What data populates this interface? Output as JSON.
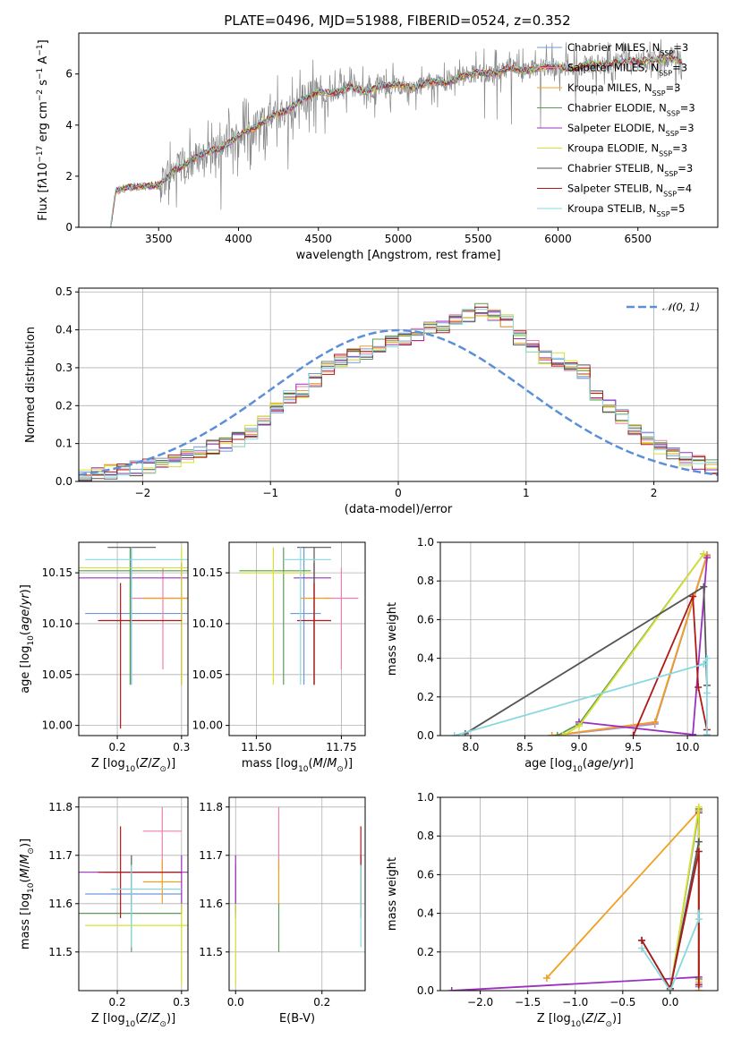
{
  "title": "PLATE=0496, MJD=51988, FIBERID=0524, z=0.352",
  "colors": {
    "Chabrier MILES": "#6e9bd8",
    "Salpeter MILES": "#f07fb0",
    "Kroupa MILES": "#f0a020",
    "Chabrier ELODIE": "#5c9a5c",
    "Salpeter ELODIE": "#9b30c0",
    "Kroupa ELODIE": "#d8e030",
    "Chabrier STELIB": "#555555",
    "Salpeter STELIB": "#b01818",
    "Kroupa STELIB": "#88d8e0",
    "data": "#888888",
    "normal": "#5b8fd9",
    "grid": "#b0b0b0"
  },
  "chart_data": [
    {
      "type": "line",
      "id": "spectrum",
      "xlabel": "wavelength [Angstrom, rest frame]",
      "ylabel_html": "Flux [f<tspan font-style='italic'>λ</tspan>10<tspan baseline-shift='super' font-size='9'>−17</tspan> erg cm<tspan baseline-shift='super' font-size='9'>−2</tspan> s<tspan baseline-shift='super' font-size='9'>−1</tspan> A<tspan baseline-shift='super' font-size='9'>−1</tspan>]",
      "xlim": [
        3000,
        7000
      ],
      "ylim": [
        0,
        7.6
      ],
      "xticks": [
        3500,
        4000,
        4500,
        5000,
        5500,
        6000,
        6500
      ],
      "yticks": [
        0,
        2,
        4,
        6
      ],
      "grid": false,
      "legend_position": "upper right",
      "continuum": {
        "x": [
          3200,
          3230,
          3300,
          3400,
          3500,
          3600,
          3700,
          3800,
          3900,
          4000,
          4100,
          4200,
          4300,
          4400,
          4500,
          4600,
          4700,
          4800,
          4900,
          5000,
          5100,
          5200,
          5300,
          5400,
          5500,
          5600,
          5700,
          5800,
          5900,
          6000,
          6100,
          6200,
          6300,
          6400,
          6500,
          6600,
          6700,
          6780
        ],
        "y": [
          0,
          1.4,
          1.55,
          1.6,
          1.65,
          2.2,
          2.6,
          2.95,
          3.1,
          3.6,
          3.9,
          4.3,
          4.55,
          5.0,
          5.3,
          5.25,
          5.5,
          5.3,
          5.55,
          5.6,
          5.45,
          5.7,
          5.65,
          5.9,
          6.05,
          6.0,
          6.25,
          6.1,
          6.3,
          6.3,
          6.2,
          6.4,
          6.35,
          6.5,
          6.5,
          6.55,
          6.6,
          6.5
        ]
      },
      "series": [
        {
          "name": "Chabrier MILES, N<tspan baseline-shift='sub' font-size='8'>SSP</tspan>=3"
        },
        {
          "name": "Salpeter MILES, N<tspan baseline-shift='sub' font-size='8'>SSP</tspan>=3"
        },
        {
          "name": "Kroupa MILES, N<tspan baseline-shift='sub' font-size='8'>SSP</tspan>=3"
        },
        {
          "name": "Chabrier ELODIE, N<tspan baseline-shift='sub' font-size='8'>SSP</tspan>=3"
        },
        {
          "name": "Salpeter ELODIE, N<tspan baseline-shift='sub' font-size='8'>SSP</tspan>=3"
        },
        {
          "name": "Kroupa ELODIE, N<tspan baseline-shift='sub' font-size='8'>SSP</tspan>=3"
        },
        {
          "name": "Chabrier STELIB, N<tspan baseline-shift='sub' font-size='8'>SSP</tspan>=3"
        },
        {
          "name": "Salpeter STELIB, N<tspan baseline-shift='sub' font-size='8'>SSP</tspan>=4"
        },
        {
          "name": "Kroupa STELIB, N<tspan baseline-shift='sub' font-size='8'>SSP</tspan>=5"
        }
      ]
    },
    {
      "type": "line",
      "id": "residuals",
      "xlabel": "(data-model)/error",
      "ylabel": "Normed distribution",
      "xlim": [
        -2.5,
        2.5
      ],
      "ylim": [
        0,
        0.51
      ],
      "xticks": [
        -2,
        -1,
        0,
        1,
        2
      ],
      "yticks": [
        0,
        0.1,
        0.2,
        0.3,
        0.4,
        0.5
      ],
      "grid": true,
      "legend_position": "upper right",
      "normal_label": "𝒩(0, 1)",
      "bin_width": 0.1,
      "bin_start": -2.5,
      "base_hist": [
        0.015,
        0.02,
        0.025,
        0.03,
        0.035,
        0.04,
        0.045,
        0.05,
        0.065,
        0.08,
        0.09,
        0.1,
        0.11,
        0.13,
        0.16,
        0.2,
        0.22,
        0.24,
        0.27,
        0.3,
        0.32,
        0.33,
        0.34,
        0.36,
        0.37,
        0.38,
        0.39,
        0.4,
        0.41,
        0.42,
        0.44,
        0.45,
        0.44,
        0.42,
        0.38,
        0.36,
        0.33,
        0.32,
        0.31,
        0.29,
        0.22,
        0.2,
        0.17,
        0.13,
        0.11,
        0.09,
        0.07,
        0.06,
        0.05,
        0.04
      ]
    },
    {
      "type": "scatter",
      "id": "age-vs-Z",
      "xlabel_html": "Z [log<tspan baseline-shift='sub' font-size='9'>10</tspan>(<tspan font-style='italic'>Z</tspan>/<tspan font-style='italic'>Z</tspan><tspan baseline-shift='sub' font-size='9'>⊙</tspan>)]",
      "ylabel_html": "age  [log<tspan baseline-shift='sub' font-size='9'>10</tspan>(<tspan font-style='italic'>age</tspan>/<tspan font-style='italic'>yr</tspan>)]",
      "xlim": [
        0.14,
        0.31
      ],
      "ylim": [
        9.99,
        10.18
      ],
      "xticks": [
        0.2,
        0.3
      ],
      "yticks": [
        10.0,
        10.05,
        10.1,
        10.15
      ],
      "grid": true,
      "points": [
        {
          "x": 0.222,
          "y": 10.11,
          "xerr": [
            0.15,
            0.31
          ],
          "yerr": [
            10.04,
            10.175
          ]
        },
        {
          "x": 0.271,
          "y": 10.125,
          "xerr": [
            0.22,
            0.31
          ],
          "yerr": [
            10.055,
            10.155
          ]
        },
        {
          "x": 0.3,
          "y": 10.125,
          "xerr": [
            0.24,
            0.31
          ],
          "yerr": [
            10.04,
            10.16
          ]
        },
        {
          "x": 0.22,
          "y": 10.152,
          "xerr": [
            0.14,
            0.31
          ],
          "yerr": [
            10.04,
            10.175
          ]
        },
        {
          "x": 0.3,
          "y": 10.145,
          "xerr": [
            0.14,
            0.31
          ],
          "yerr": [
            10.04,
            10.16
          ]
        },
        {
          "x": 0.3,
          "y": 10.155,
          "xerr": [
            0.14,
            0.31
          ],
          "yerr": [
            10.04,
            10.175
          ]
        },
        {
          "x": 0.222,
          "y": 10.175,
          "xerr": [
            0.185,
            0.26
          ],
          "yerr": [
            10.04,
            10.175
          ]
        },
        {
          "x": 0.205,
          "y": 10.103,
          "xerr": [
            0.17,
            0.3
          ],
          "yerr": [
            9.997,
            10.14
          ]
        },
        {
          "x": 0.222,
          "y": 10.163,
          "xerr": [
            0.15,
            0.31
          ],
          "yerr": [
            10.04,
            10.175
          ]
        }
      ]
    },
    {
      "type": "scatter",
      "id": "age-vs-mass",
      "xlabel_html": "mass [log<tspan baseline-shift='sub' font-size='9'>10</tspan>(<tspan font-style='italic'>M</tspan>/<tspan font-style='italic'>M</tspan><tspan baseline-shift='sub' font-size='9'>⊙</tspan>)]",
      "ylabel_html": "",
      "xlim": [
        11.42,
        11.82
      ],
      "ylim": [
        9.99,
        10.18
      ],
      "xticks": [
        11.5,
        11.75
      ],
      "yticks": [
        10.0,
        10.05,
        10.1,
        10.15
      ],
      "grid": true,
      "points": [
        {
          "x": 11.64,
          "y": 10.11,
          "xerr": [
            11.6,
            11.69
          ],
          "yerr": [
            10.04,
            10.175
          ]
        },
        {
          "x": 11.75,
          "y": 10.125,
          "xerr": [
            11.7,
            11.8
          ],
          "yerr": [
            10.055,
            10.155
          ]
        },
        {
          "x": 11.67,
          "y": 10.125,
          "xerr": [
            11.63,
            11.72
          ],
          "yerr": [
            10.04,
            10.16
          ]
        },
        {
          "x": 11.58,
          "y": 10.152,
          "xerr": [
            11.45,
            11.66
          ],
          "yerr": [
            10.04,
            10.175
          ]
        },
        {
          "x": 11.67,
          "y": 10.145,
          "xerr": [
            11.61,
            11.72
          ],
          "yerr": [
            10.04,
            10.16
          ]
        },
        {
          "x": 11.55,
          "y": 10.15,
          "xerr": [
            11.45,
            11.66
          ],
          "yerr": [
            10.04,
            10.175
          ]
        },
        {
          "x": 11.67,
          "y": 10.175,
          "xerr": [
            11.62,
            11.72
          ],
          "yerr": [
            10.04,
            10.175
          ]
        },
        {
          "x": 11.67,
          "y": 10.103,
          "xerr": [
            11.62,
            11.72
          ],
          "yerr": [
            10.04,
            10.14
          ]
        },
        {
          "x": 11.63,
          "y": 10.163,
          "xerr": [
            11.58,
            11.72
          ],
          "yerr": [
            10.04,
            10.175
          ]
        }
      ]
    },
    {
      "type": "line",
      "id": "mass-weight-vs-age",
      "xlabel_html": "age  [log<tspan baseline-shift='sub' font-size='9'>10</tspan>(<tspan font-style='italic'>age</tspan>/<tspan font-style='italic'>yr</tspan>)]",
      "ylabel": "mass weight",
      "xlim": [
        7.72,
        10.28
      ],
      "ylim": [
        0,
        1
      ],
      "xticks": [
        8.0,
        8.5,
        9.0,
        9.5,
        10.0
      ],
      "yticks": [
        0,
        0.2,
        0.4,
        0.6,
        0.8,
        1.0
      ],
      "grid": true,
      "series": [
        {
          "x": [
            8.75,
            9.7,
            10.18
          ],
          "y": [
            0.0,
            0.06,
            0.93
          ]
        },
        {
          "x": [
            8.75,
            9.7,
            10.18
          ],
          "y": [
            0.0,
            0.065,
            0.935
          ]
        },
        {
          "x": [
            8.75,
            9.7,
            10.18
          ],
          "y": [
            0.0,
            0.07,
            0.93
          ]
        },
        {
          "x": [
            8.8,
            9.0,
            10.15
          ],
          "y": [
            0.0,
            0.06,
            0.94
          ]
        },
        {
          "x": [
            9.0,
            10.05,
            10.18
          ],
          "y": [
            0.07,
            0.005,
            0.92
          ]
        },
        {
          "x": [
            8.85,
            9.0,
            10.15
          ],
          "y": [
            0.0,
            0.05,
            0.94
          ]
        },
        {
          "x": [
            7.95,
            10.15,
            10.18
          ],
          "y": [
            0.01,
            0.77,
            0.26
          ]
        },
        {
          "x": [
            9.5,
            10.05,
            10.1,
            10.18
          ],
          "y": [
            0.0,
            0.72,
            0.25,
            0.03
          ]
        },
        {
          "x": [
            7.85,
            10.15,
            10.18,
            10.18,
            10.18
          ],
          "y": [
            0.0,
            0.37,
            0.4,
            0.22,
            0.005
          ]
        }
      ]
    },
    {
      "type": "scatter",
      "id": "mass-vs-Z",
      "xlabel_html": "Z [log<tspan baseline-shift='sub' font-size='9'>10</tspan>(<tspan font-style='italic'>Z</tspan>/<tspan font-style='italic'>Z</tspan><tspan baseline-shift='sub' font-size='9'>⊙</tspan>)]",
      "ylabel_html": "mass [log<tspan baseline-shift='sub' font-size='9'>10</tspan>(<tspan font-style='italic'>M</tspan>/<tspan font-style='italic'>M</tspan><tspan baseline-shift='sub' font-size='9'>⊙</tspan>)]",
      "xlim": [
        0.14,
        0.31
      ],
      "ylim": [
        11.42,
        11.82
      ],
      "xticks": [
        0.2,
        0.3
      ],
      "yticks": [
        11.5,
        11.6,
        11.7,
        11.8
      ],
      "grid": true,
      "points": [
        {
          "x": 0.222,
          "y": 11.62,
          "xerr": [
            0.15,
            0.3
          ],
          "yerr": [
            11.57,
            11.68
          ]
        },
        {
          "x": 0.27,
          "y": 11.75,
          "xerr": [
            0.24,
            0.3
          ],
          "yerr": [
            11.67,
            11.8
          ]
        },
        {
          "x": 0.27,
          "y": 11.645,
          "xerr": [
            0.24,
            0.3
          ],
          "yerr": [
            11.6,
            11.69
          ]
        },
        {
          "x": 0.222,
          "y": 11.58,
          "xerr": [
            0.14,
            0.3
          ],
          "yerr": [
            11.5,
            11.6
          ]
        },
        {
          "x": 0.3,
          "y": 11.665,
          "xerr": [
            0.14,
            0.31
          ],
          "yerr": [
            11.58,
            11.7
          ]
        },
        {
          "x": 0.3,
          "y": 11.555,
          "xerr": [
            0.15,
            0.31
          ],
          "yerr": [
            11.43,
            11.6
          ]
        },
        {
          "x": 0.222,
          "y": 11.665,
          "xerr": [
            0.18,
            0.3
          ],
          "yerr": [
            11.6,
            11.7
          ]
        },
        {
          "x": 0.205,
          "y": 11.665,
          "xerr": [
            0.17,
            0.3
          ],
          "yerr": [
            11.57,
            11.76
          ]
        },
        {
          "x": 0.222,
          "y": 11.63,
          "xerr": [
            0.19,
            0.3
          ],
          "yerr": [
            11.51,
            11.68
          ]
        }
      ]
    },
    {
      "type": "scatter",
      "id": "mass-vs-EBV",
      "xlabel": "E(B-V)",
      "ylabel_html": "",
      "xlim": [
        -0.015,
        0.3
      ],
      "ylim": [
        11.42,
        11.82
      ],
      "xticks": [
        0.0,
        0.2
      ],
      "yticks": [
        11.5,
        11.6,
        11.7,
        11.8
      ],
      "grid": true,
      "points": [
        {
          "x": 0.0,
          "y": 11.62,
          "yerr": [
            11.57,
            11.68
          ]
        },
        {
          "x": 0.1,
          "y": 11.75,
          "yerr": [
            11.67,
            11.8
          ]
        },
        {
          "x": 0.1,
          "y": 11.645,
          "yerr": [
            11.6,
            11.69
          ]
        },
        {
          "x": 0.1,
          "y": 11.58,
          "yerr": [
            11.5,
            11.6
          ]
        },
        {
          "x": 0.0,
          "y": 11.665,
          "yerr": [
            11.58,
            11.7
          ]
        },
        {
          "x": 0.0,
          "y": 11.555,
          "yerr": [
            11.43,
            11.6
          ]
        },
        {
          "x": 0.29,
          "y": 11.665,
          "yerr": [
            11.6,
            11.7
          ]
        },
        {
          "x": 0.29,
          "y": 11.665,
          "yerr": [
            11.57,
            11.76
          ]
        },
        {
          "x": 0.29,
          "y": 11.63,
          "yerr": [
            11.51,
            11.68
          ]
        }
      ]
    },
    {
      "type": "line",
      "id": "mass-weight-vs-Z",
      "xlabel_html": "Z [log<tspan baseline-shift='sub' font-size='9'>10</tspan>(<tspan font-style='italic'>Z</tspan>/<tspan font-style='italic'>Z</tspan><tspan baseline-shift='sub' font-size='9'>⊙</tspan>)]",
      "ylabel": "mass weight",
      "xlim": [
        -2.42,
        0.5
      ],
      "ylim": [
        0,
        1
      ],
      "xticks": [
        -2.0,
        -1.5,
        -1.0,
        -0.5,
        0.0
      ],
      "yticks": [
        0,
        0.2,
        0.4,
        0.6,
        0.8,
        1.0
      ],
      "grid": true,
      "series": [
        {
          "x": [
            0.0,
            0.3,
            0.3
          ],
          "y": [
            0.0,
            0.93,
            0.02
          ]
        },
        {
          "x": [
            0.0,
            0.3,
            0.3
          ],
          "y": [
            0.0,
            0.94,
            0.04
          ]
        },
        {
          "x": [
            -1.3,
            0.3,
            0.3
          ],
          "y": [
            0.065,
            0.93,
            0.0
          ]
        },
        {
          "x": [
            0.0,
            0.3,
            0.3
          ],
          "y": [
            0.0,
            0.94,
            0.06
          ]
        },
        {
          "x": [
            -2.3,
            0.3,
            0.3
          ],
          "y": [
            0.0,
            0.07,
            0.92
          ]
        },
        {
          "x": [
            0.0,
            0.3,
            0.3
          ],
          "y": [
            0.0,
            0.95,
            0.05
          ]
        },
        {
          "x": [
            -0.3,
            0.0,
            0.3
          ],
          "y": [
            0.26,
            0.01,
            0.77
          ]
        },
        {
          "x": [
            -0.3,
            0.0,
            0.3,
            0.3
          ],
          "y": [
            0.26,
            0.01,
            0.72,
            0.03
          ]
        },
        {
          "x": [
            -0.3,
            0.0,
            0.3,
            0.3
          ],
          "y": [
            0.22,
            0.0,
            0.37,
            0.4
          ]
        }
      ]
    }
  ]
}
